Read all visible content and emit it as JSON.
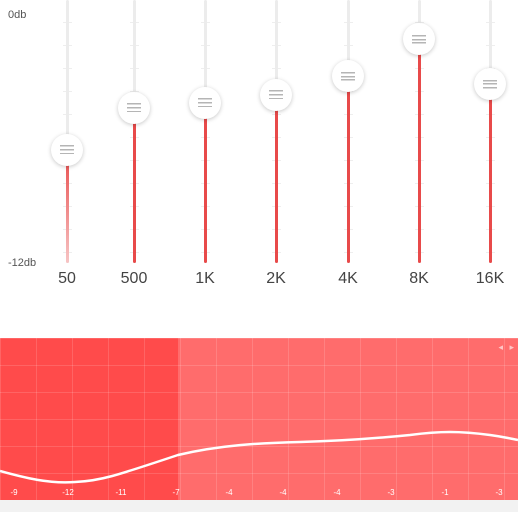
{
  "equalizer": {
    "top_label": "0db",
    "bottom_label": "-12db",
    "bands": [
      {
        "label": "50",
        "level": 0.43
      },
      {
        "label": "500",
        "level": 0.59
      },
      {
        "label": "1K",
        "level": 0.61
      },
      {
        "label": "2K",
        "level": 0.64
      },
      {
        "label": "4K",
        "level": 0.71
      },
      {
        "label": "8K",
        "level": 0.85
      },
      {
        "label": "16K",
        "level": 0.68
      }
    ]
  },
  "graph": {
    "axis_values": [
      "-9",
      "-12",
      "-11",
      "-7",
      "-4",
      "-4",
      "-4",
      "-3",
      "-1",
      "-3"
    ],
    "arrows": [
      "◂",
      "▸"
    ],
    "colors": {
      "background": "#ff6c6c",
      "highlight": "#ff4b4b",
      "curve": "#ffffff"
    }
  }
}
